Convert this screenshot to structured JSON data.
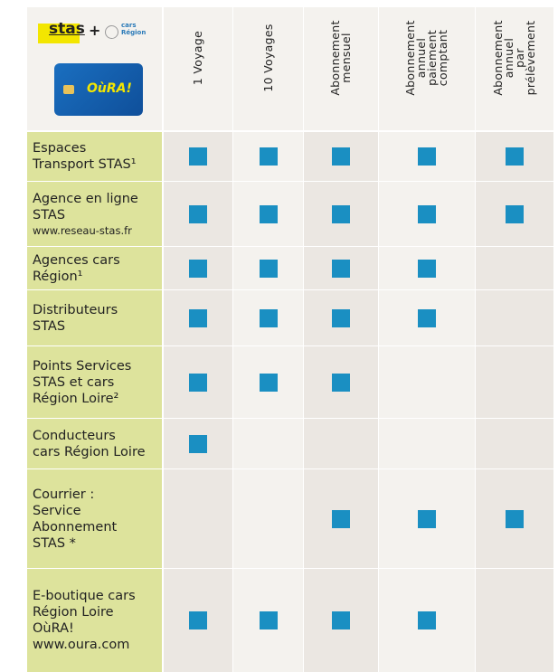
{
  "logo": {
    "stas": "stas",
    "plus": "+",
    "cars": "cars",
    "region": "Région",
    "card": "OùRA!"
  },
  "table": {
    "columns": [
      [
        "1 Voyage"
      ],
      [
        "10 Voyages"
      ],
      [
        "Abonnement",
        "mensuel"
      ],
      [
        "Abonnement",
        "annuel",
        "paiement",
        "comptant"
      ],
      [
        "Abonnement",
        "annuel",
        "par",
        "prélèvement"
      ]
    ],
    "rows": [
      {
        "label": [
          "Espaces",
          "Transport STAS¹"
        ],
        "available": [
          true,
          true,
          true,
          true,
          true
        ]
      },
      {
        "label": [
          "Agence en ligne",
          "STAS"
        ],
        "note": "www.reseau-stas.fr",
        "available": [
          true,
          true,
          true,
          true,
          true
        ]
      },
      {
        "label": [
          "Agences cars",
          "Région¹"
        ],
        "available": [
          true,
          true,
          true,
          true,
          false
        ]
      },
      {
        "label": [
          "Distributeurs",
          "STAS"
        ],
        "available": [
          true,
          true,
          true,
          true,
          false
        ]
      },
      {
        "label": [
          "Points Services",
          "STAS et cars",
          "Région Loire²"
        ],
        "available": [
          true,
          true,
          true,
          false,
          false
        ]
      },
      {
        "label": [
          "Conducteurs",
          "cars Région Loire"
        ],
        "available": [
          true,
          false,
          false,
          false,
          false
        ]
      },
      {
        "label": [
          "Courrier :",
          "Service",
          "Abonnement",
          "STAS *"
        ],
        "available": [
          false,
          false,
          true,
          true,
          true
        ]
      },
      {
        "label": [
          "E-boutique cars",
          "Région Loire",
          "OùRA!",
          "www.oura.com"
        ],
        "available": [
          true,
          true,
          true,
          true,
          false
        ]
      }
    ]
  }
}
